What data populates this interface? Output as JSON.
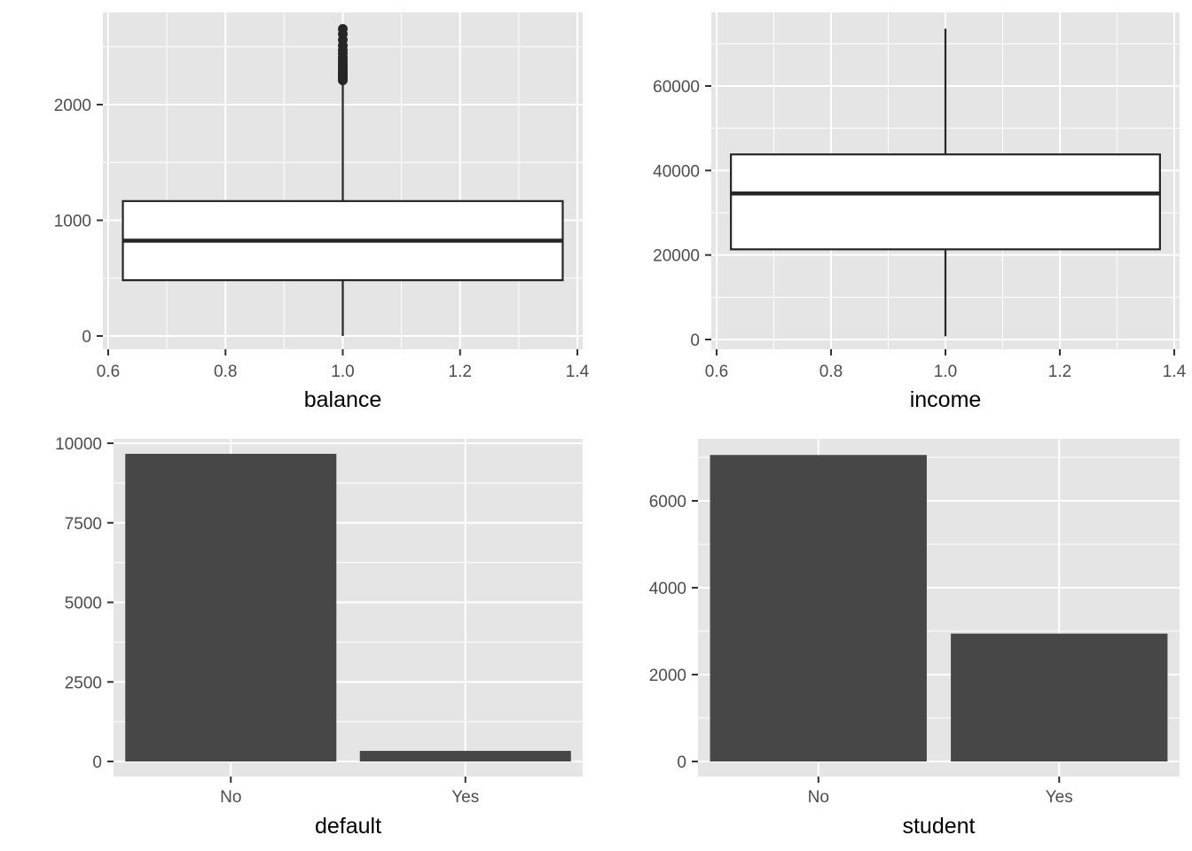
{
  "chart_data": [
    {
      "type": "box",
      "xlabel": "balance",
      "ylabel": "",
      "xlim": [
        0.6,
        1.4
      ],
      "ylim": [
        0,
        2654
      ],
      "x_ticks": [
        0.6,
        0.8,
        1.0,
        1.2,
        1.4
      ],
      "x_tick_labels": [
        "0.6",
        "0.8",
        "1.0",
        "1.2",
        "1.4"
      ],
      "y_ticks": [
        0,
        1000,
        2000
      ],
      "y_tick_labels": [
        "0",
        "1000",
        "2000"
      ],
      "box": {
        "x": 1.0,
        "x_range": [
          0.625,
          1.375
        ],
        "whisker_low": 0,
        "q1": 482,
        "median": 824,
        "q3": 1166,
        "whisker_high": 2190,
        "outliers": [
          2210,
          2225,
          2240,
          2255,
          2270,
          2285,
          2300,
          2320,
          2340,
          2360,
          2385,
          2410,
          2440,
          2470,
          2510,
          2560,
          2610,
          2654
        ]
      },
      "grid": true
    },
    {
      "type": "box",
      "xlabel": "income",
      "ylabel": "",
      "xlim": [
        0.6,
        1.4
      ],
      "ylim": [
        0,
        73554
      ],
      "x_ticks": [
        0.6,
        0.8,
        1.0,
        1.2,
        1.4
      ],
      "x_tick_labels": [
        "0.6",
        "0.8",
        "1.0",
        "1.2",
        "1.4"
      ],
      "y_ticks": [
        0,
        20000,
        40000,
        60000
      ],
      "y_tick_labels": [
        "0",
        "20000",
        "40000",
        "60000"
      ],
      "box": {
        "x": 1.0,
        "x_range": [
          0.625,
          1.375
        ],
        "whisker_low": 772,
        "q1": 21340,
        "median": 34553,
        "q3": 43808,
        "whisker_high": 73554,
        "outliers": []
      },
      "grid": true
    },
    {
      "type": "bar",
      "xlabel": "default",
      "ylabel": "",
      "categories": [
        "No",
        "Yes"
      ],
      "values": [
        9667,
        333
      ],
      "ylim": [
        0,
        10000
      ],
      "y_ticks": [
        0,
        2500,
        5000,
        7500,
        10000
      ],
      "y_tick_labels": [
        "0",
        "2500",
        "5000",
        "7500",
        "10000"
      ],
      "grid": true
    },
    {
      "type": "bar",
      "xlabel": "student",
      "ylabel": "",
      "categories": [
        "No",
        "Yes"
      ],
      "values": [
        7056,
        2944
      ],
      "ylim": [
        0,
        7056
      ],
      "y_ticks": [
        0,
        2000,
        4000,
        6000
      ],
      "y_tick_labels": [
        "0",
        "2000",
        "4000",
        "6000"
      ],
      "grid": true
    }
  ],
  "colors": {
    "panel_background": "#e5e5e5",
    "grid_line": "#ffffff",
    "bar_fill": "#474747",
    "box_line": "#262626",
    "box_fill": "#ffffff",
    "tick_color": "#333333"
  }
}
